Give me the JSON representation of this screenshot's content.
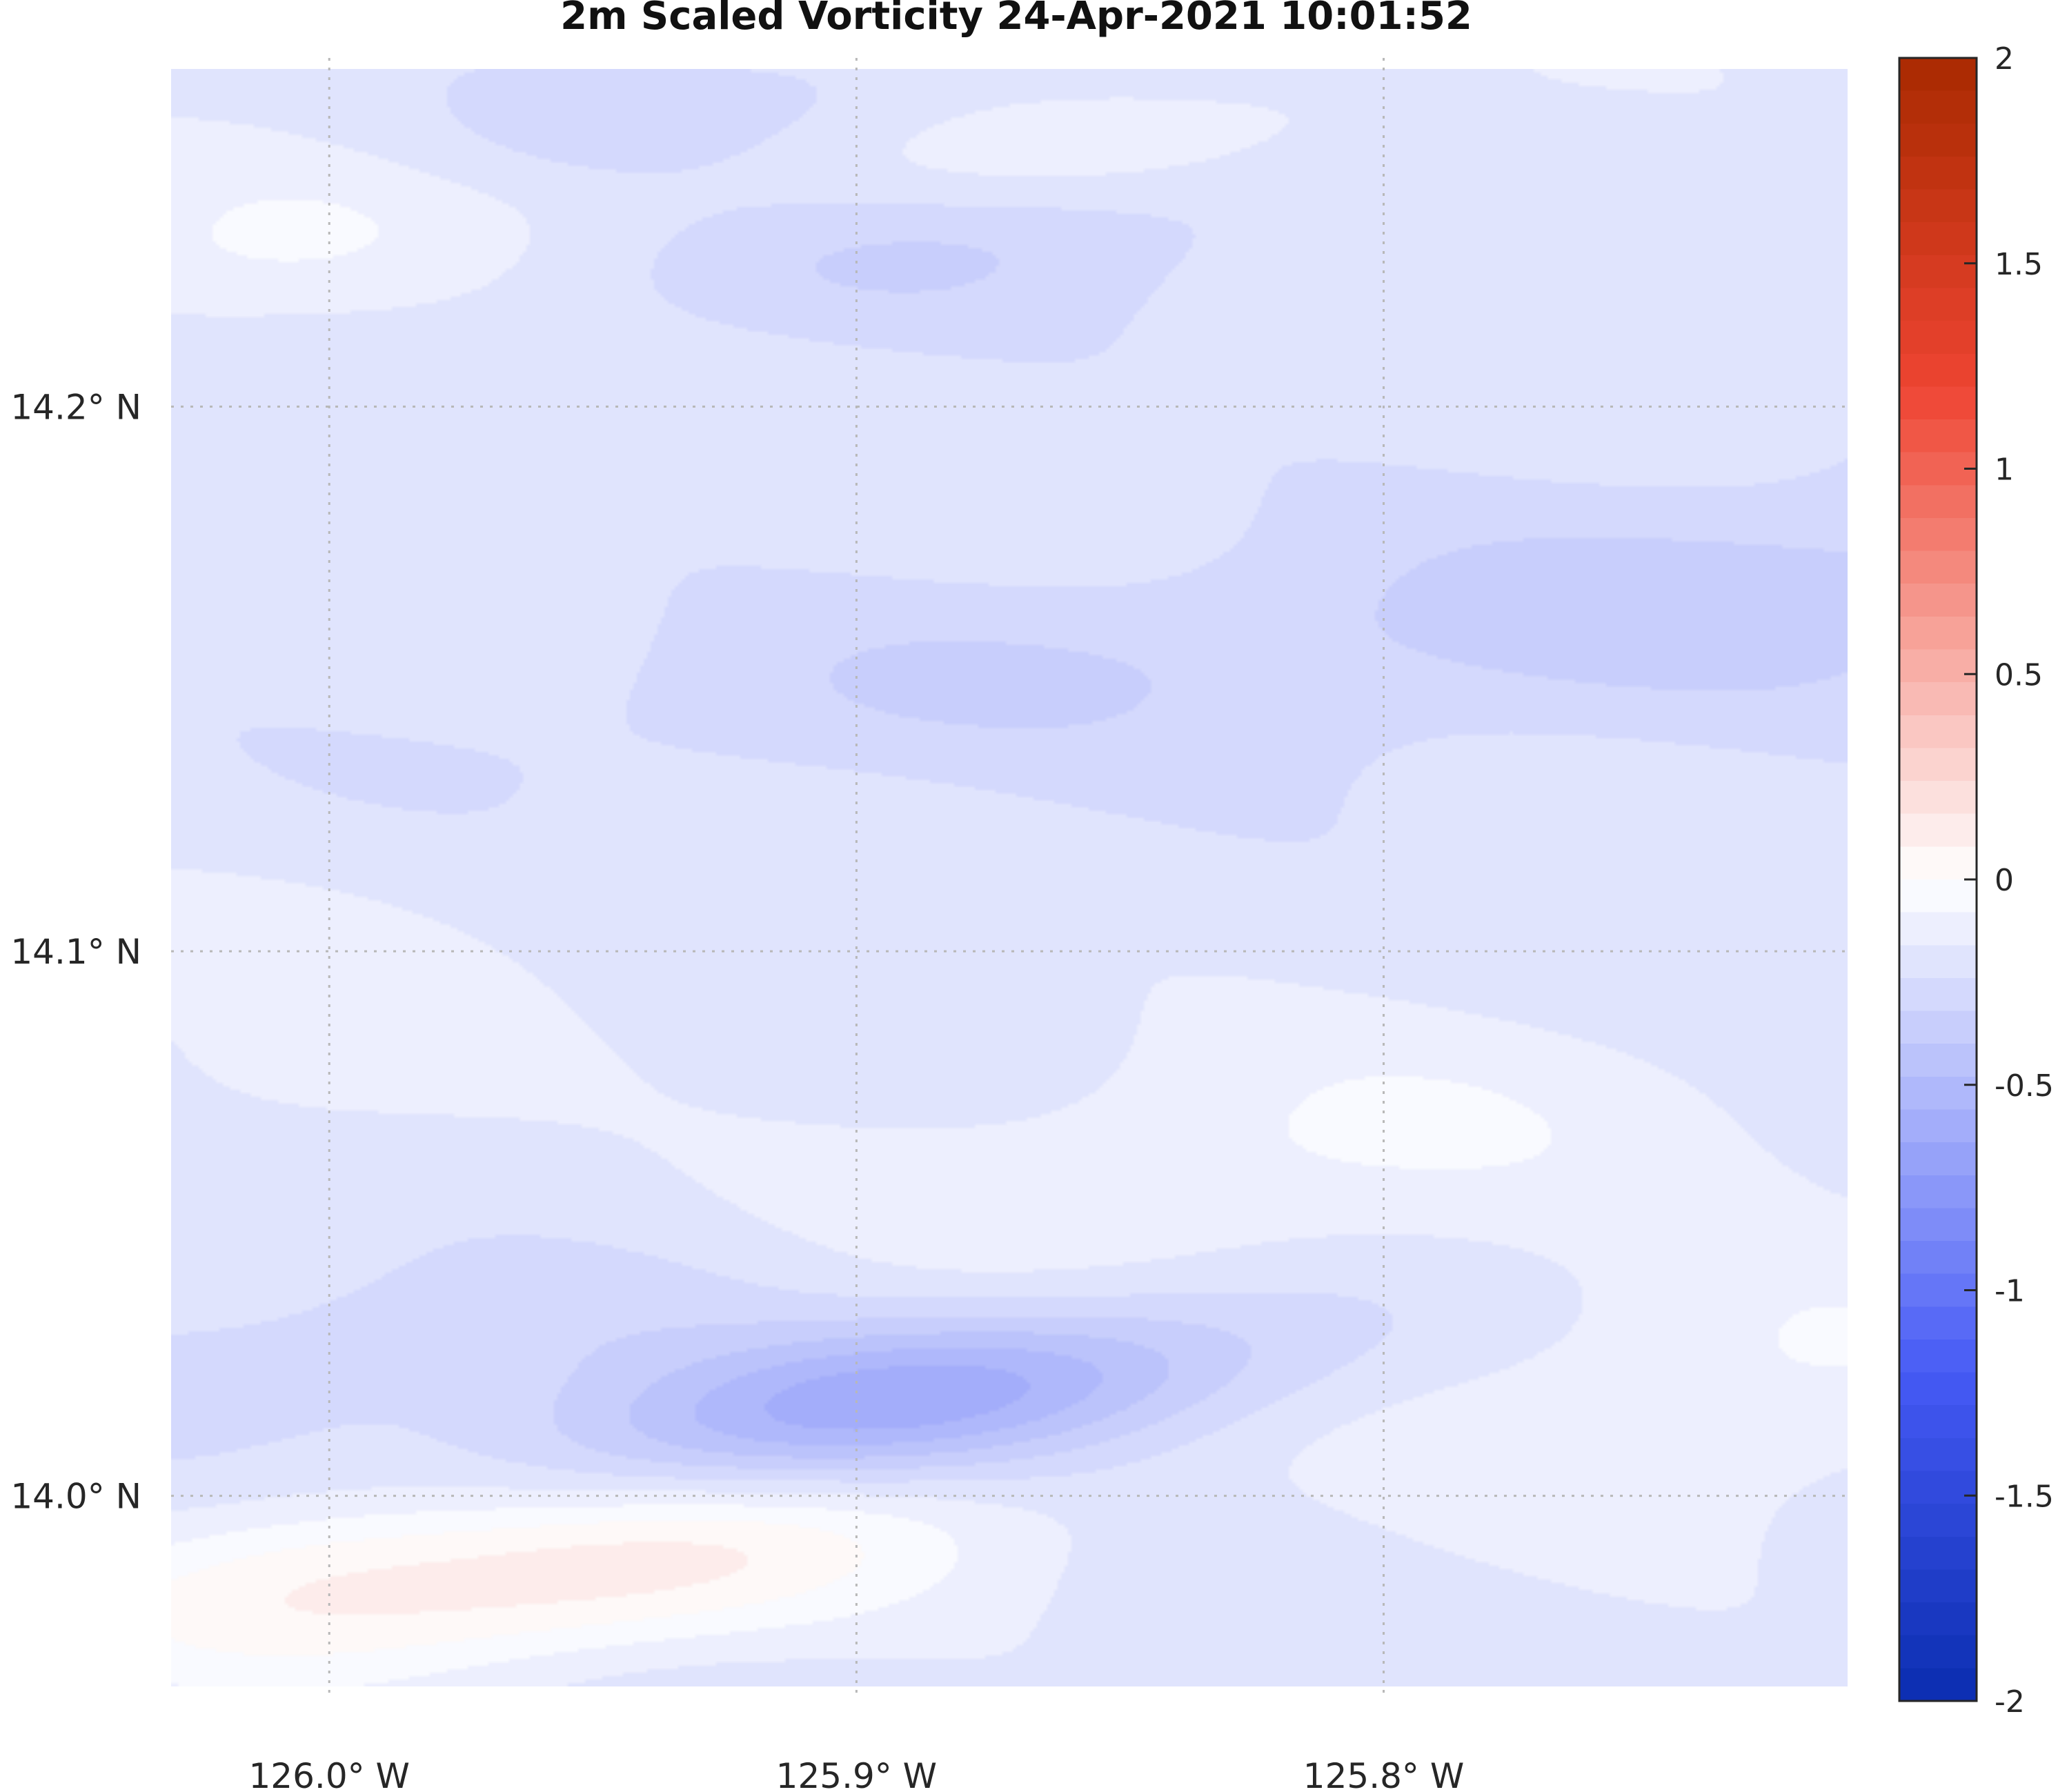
{
  "chart_data": {
    "type": "heatmap",
    "title": "2m Scaled Vorticity  24-Apr-2021 10:01:52",
    "xlabel": "",
    "ylabel": "",
    "x_ticks": [
      {
        "value": -126.0,
        "label": "126.0° W"
      },
      {
        "value": -125.9,
        "label": "125.9° W"
      },
      {
        "value": -125.8,
        "label": "125.8° W"
      }
    ],
    "y_ticks": [
      {
        "value": 14.2,
        "label": "14.2° N"
      },
      {
        "value": 14.1,
        "label": "14.1° N"
      },
      {
        "value": 14.0,
        "label": "14.0° N"
      }
    ],
    "xlim": [
      -126.03,
      -125.712
    ],
    "ylim": [
      13.965,
      14.262
    ],
    "grid": true,
    "colorbar": {
      "min": -2,
      "max": 2,
      "ticks": [
        {
          "value": 2,
          "label": "2"
        },
        {
          "value": 1.5,
          "label": "1.5"
        },
        {
          "value": 1,
          "label": "1"
        },
        {
          "value": 0.5,
          "label": "0.5"
        },
        {
          "value": 0,
          "label": "0"
        },
        {
          "value": -0.5,
          "label": "-0.5"
        },
        {
          "value": -1,
          "label": "-1"
        },
        {
          "value": -1.5,
          "label": "-1.5"
        },
        {
          "value": -2,
          "label": "-2"
        }
      ],
      "colors": {
        "low": "#0a2db0",
        "mid": "#ffffff",
        "high": "#a82a00"
      }
    },
    "field_features": [
      {
        "lon": -125.955,
        "lat": 13.985,
        "value": 0.32,
        "sx": 0.055,
        "sy": 0.011
      },
      {
        "lon": -126.01,
        "lat": 13.988,
        "value": 0.12,
        "sx": 0.03,
        "sy": 0.01
      },
      {
        "lon": -125.89,
        "lat": 14.018,
        "value": -0.42,
        "sx": 0.048,
        "sy": 0.01
      },
      {
        "lon": -125.99,
        "lat": 14.028,
        "value": -0.1,
        "sx": 0.05,
        "sy": 0.01
      },
      {
        "lon": -125.82,
        "lat": 14.062,
        "value": 0.13,
        "sx": 0.06,
        "sy": 0.016
      },
      {
        "lon": -125.735,
        "lat": 14.02,
        "value": 0.13,
        "sx": 0.045,
        "sy": 0.018
      },
      {
        "lon": -125.73,
        "lat": 14.165,
        "value": -0.16,
        "sx": 0.09,
        "sy": 0.016
      },
      {
        "lon": -125.88,
        "lat": 14.23,
        "value": -0.12,
        "sx": 0.05,
        "sy": 0.011
      },
      {
        "lon": -125.93,
        "lat": 14.255,
        "value": -0.08,
        "sx": 0.04,
        "sy": 0.008
      },
      {
        "lon": -125.9,
        "lat": 14.148,
        "value": -0.08,
        "sx": 0.06,
        "sy": 0.012
      },
      {
        "lon": -126.015,
        "lat": 14.23,
        "value": 0.12,
        "sx": 0.035,
        "sy": 0.012
      },
      {
        "lon": -126.005,
        "lat": 14.085,
        "value": 0.08,
        "sx": 0.035,
        "sy": 0.02
      },
      {
        "lon": -125.85,
        "lat": 14.248,
        "value": 0.1,
        "sx": 0.055,
        "sy": 0.008
      }
    ],
    "field_background": -0.2
  }
}
